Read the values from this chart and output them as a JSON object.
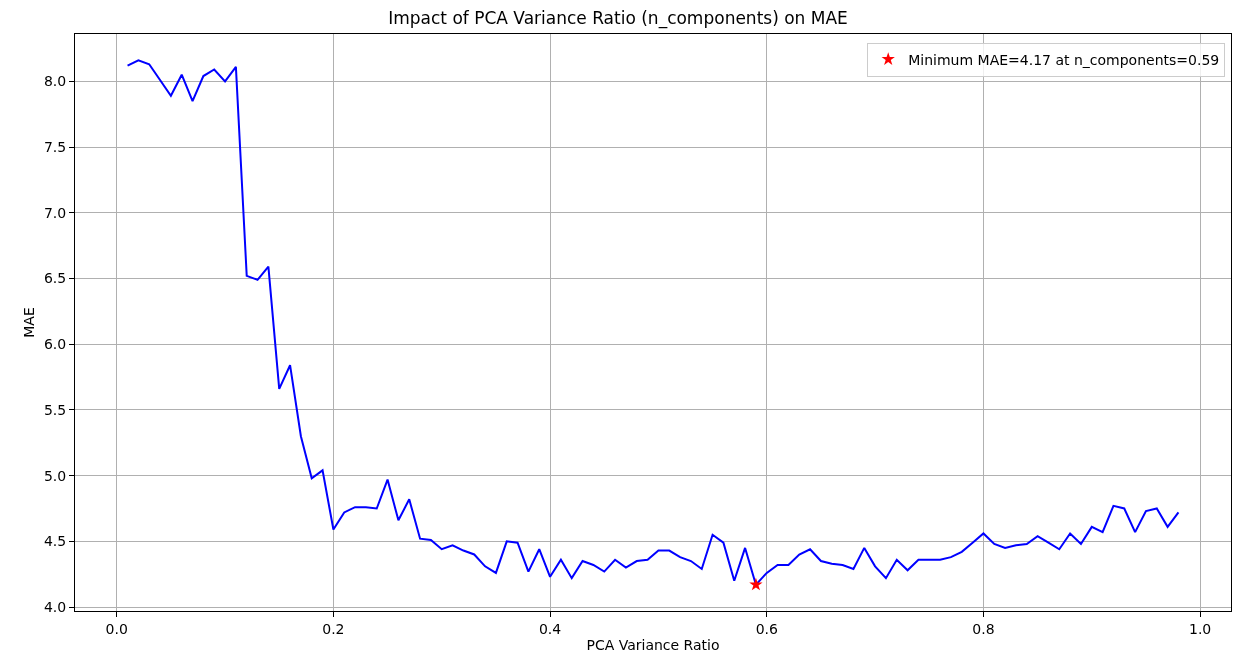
{
  "chart_data": {
    "type": "line",
    "title": "Impact of PCA Variance Ratio (n_components) on MAE",
    "xlabel": "PCA Variance Ratio",
    "ylabel": "MAE",
    "x": [
      0.01,
      0.02,
      0.03,
      0.04,
      0.05,
      0.06,
      0.07,
      0.08,
      0.09,
      0.1,
      0.11,
      0.12,
      0.13,
      0.14,
      0.15,
      0.16,
      0.17,
      0.18,
      0.19,
      0.2,
      0.21,
      0.22,
      0.23,
      0.24,
      0.25,
      0.26,
      0.27,
      0.28,
      0.29,
      0.3,
      0.31,
      0.32,
      0.33,
      0.34,
      0.35,
      0.36,
      0.37,
      0.38,
      0.39,
      0.4,
      0.41,
      0.42,
      0.43,
      0.44,
      0.45,
      0.46,
      0.47,
      0.48,
      0.49,
      0.5,
      0.51,
      0.52,
      0.53,
      0.54,
      0.55,
      0.56,
      0.57,
      0.58,
      0.59,
      0.6,
      0.61,
      0.62,
      0.63,
      0.64,
      0.65,
      0.66,
      0.67,
      0.68,
      0.69,
      0.7,
      0.71,
      0.72,
      0.73,
      0.74,
      0.75,
      0.76,
      0.77,
      0.78,
      0.79,
      0.8,
      0.81,
      0.82,
      0.83,
      0.84,
      0.85,
      0.86,
      0.87,
      0.88,
      0.89,
      0.9,
      0.91,
      0.92,
      0.93,
      0.94,
      0.95,
      0.96,
      0.97,
      0.98
    ],
    "series": [
      {
        "color": "#0000ff",
        "line_style": "solid",
        "values": [
          8.12,
          8.16,
          8.13,
          8.01,
          7.89,
          8.05,
          7.85,
          8.04,
          8.09,
          8.0,
          8.11,
          6.52,
          6.49,
          6.59,
          5.66,
          5.84,
          5.3,
          4.98,
          5.04,
          4.59,
          4.72,
          4.76,
          4.76,
          4.75,
          4.97,
          4.66,
          4.82,
          4.52,
          4.51,
          4.44,
          4.47,
          4.43,
          4.4,
          4.31,
          4.26,
          4.5,
          4.49,
          4.27,
          4.44,
          4.23,
          4.36,
          4.22,
          4.35,
          4.32,
          4.27,
          4.36,
          4.3,
          4.35,
          4.36,
          4.43,
          4.43,
          4.38,
          4.35,
          4.29,
          4.55,
          4.49,
          4.2,
          4.45,
          4.17,
          4.26,
          4.32,
          4.32,
          4.4,
          4.44,
          4.35,
          4.33,
          4.32,
          4.29,
          4.45,
          4.31,
          4.22,
          4.36,
          4.28,
          4.36,
          4.36,
          4.36,
          4.38,
          4.42,
          4.49,
          4.56,
          4.48,
          4.45,
          4.47,
          4.48,
          4.54,
          4.49,
          4.44,
          4.56,
          4.48,
          4.61,
          4.57,
          4.77,
          4.75,
          4.57,
          4.73,
          4.75,
          4.61,
          4.72
        ]
      },
      {
        "type": "scatter",
        "name": "Minimum MAE=4.17 at n_components=0.59",
        "color": "#ff0000",
        "marker": "star",
        "x": [
          0.59
        ],
        "values": [
          4.17
        ]
      }
    ],
    "xlim": [
      -0.0385,
      1.0285
    ],
    "ylim": [
      3.97,
      8.36
    ],
    "xticks": [
      {
        "value": 0,
        "label": "0.0"
      },
      {
        "value": 0.2,
        "label": "0.2"
      },
      {
        "value": 0.4,
        "label": "0.4"
      },
      {
        "value": 0.6,
        "label": "0.6"
      },
      {
        "value": 0.8,
        "label": "0.8"
      },
      {
        "value": 1,
        "label": "1.0"
      }
    ],
    "yticks": [
      {
        "value": 4,
        "label": "4.0"
      },
      {
        "value": 4.5,
        "label": "4.5"
      },
      {
        "value": 5,
        "label": "5.0"
      },
      {
        "value": 5.5,
        "label": "5.5"
      },
      {
        "value": 6,
        "label": "6.0"
      },
      {
        "value": 6.5,
        "label": "6.5"
      },
      {
        "value": 7,
        "label": "7.0"
      },
      {
        "value": 7.5,
        "label": "7.5"
      },
      {
        "value": 8,
        "label": "8.0"
      }
    ],
    "grid": true,
    "legend": "top right"
  }
}
